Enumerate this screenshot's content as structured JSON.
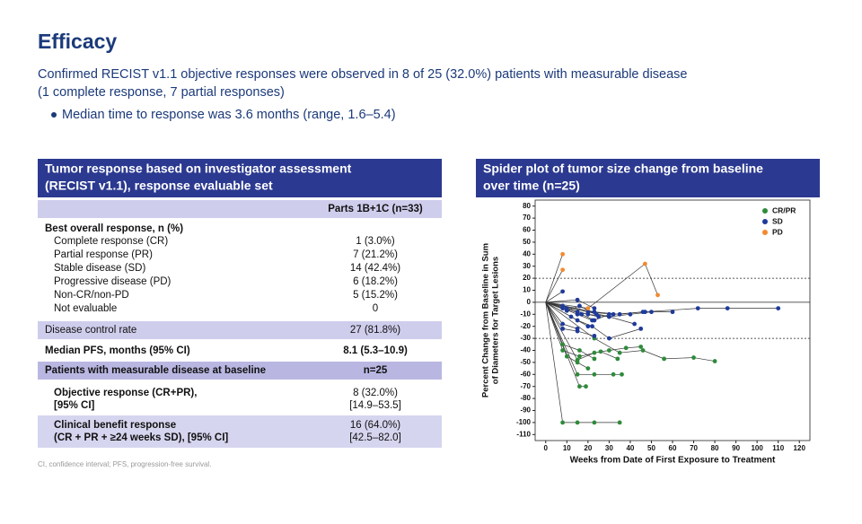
{
  "header": {
    "title": "Efficacy",
    "subtitle_lines": [
      "Confirmed RECIST v1.1 objective responses were observed in 8 of 25 (32.0%) patients with measurable disease",
      "(1 complete response, 7 partial responses)"
    ],
    "bullet": "Median time to response was 3.6 months (range, 1.6–5.4)"
  },
  "table": {
    "title_lines": [
      "Tumor response based on investigator assessment",
      "(RECIST v1.1), response evaluable set"
    ],
    "column": "Parts 1B+1C (n=33)",
    "section": "Best overall response, n (%)",
    "rows": [
      [
        "Complete response (CR)",
        "1 (3.0%)"
      ],
      [
        "Partial response (PR)",
        "7 (21.2%)"
      ],
      [
        "Stable disease (SD)",
        "14 (42.4%)"
      ],
      [
        "Progressive disease (PD)",
        "6 (18.2%)"
      ],
      [
        "Non-CR/non-PD",
        "5 (15.2%)"
      ],
      [
        "Not evaluable",
        "0"
      ]
    ],
    "dcr": [
      "Disease control rate",
      "27 (81.8%)"
    ],
    "pfs": [
      "Median PFS, months (95% CI)",
      "8.1 (5.3–10.9)"
    ],
    "measurable": [
      "Patients with measurable disease at baseline",
      "n=25"
    ],
    "orr": [
      [
        "Objective response (CR+PR),",
        "[95% CI]"
      ],
      [
        "8 (32.0%)",
        "[14.9–53.5]"
      ]
    ],
    "cbr": [
      [
        "Clinical benefit response",
        "(CR + PR + ≥24 weeks SD), [95% CI]"
      ],
      [
        "16 (64.0%)",
        "[42.5–82.0]"
      ]
    ],
    "footnote": "CI, confidence interval; PFS, progression-free survival."
  },
  "chart_data": {
    "type": "spider",
    "title_lines": [
      "Spider plot of tumor size change from baseline",
      "over time (n=25)"
    ],
    "x_label": "Weeks from Date of First Exposure to Treatment",
    "y_label_lines": [
      "Percent Change from Baseline in Sum",
      "of Diameters for Target Lesions"
    ],
    "xlim": [
      -5,
      125
    ],
    "xticks": [
      0,
      10,
      20,
      30,
      40,
      50,
      60,
      70,
      80,
      90,
      100,
      110,
      120
    ],
    "ylim": [
      -115,
      85
    ],
    "yticks": [
      -110,
      -100,
      -90,
      -80,
      -70,
      -60,
      -50,
      -40,
      -30,
      -20,
      -10,
      0,
      10,
      20,
      30,
      40,
      50,
      60,
      70,
      80
    ],
    "reference_lines": [
      20,
      -30
    ],
    "legend": [
      {
        "name": "CR/PR",
        "color": "#2e8b3a"
      },
      {
        "name": "SD",
        "color": "#1f3a9b"
      },
      {
        "name": "PD",
        "color": "#f28a30"
      }
    ],
    "patients": [
      {
        "group": 0,
        "x": [
          0,
          8,
          15,
          23,
          35
        ],
        "y": [
          0,
          -100,
          -100,
          -100,
          -100
        ]
      },
      {
        "group": 0,
        "x": [
          0,
          16,
          19
        ],
        "y": [
          0,
          -70,
          -70
        ]
      },
      {
        "group": 0,
        "x": [
          0,
          15,
          23,
          32,
          36
        ],
        "y": [
          0,
          -60,
          -60,
          -60,
          -60
        ]
      },
      {
        "group": 0,
        "x": [
          0,
          8,
          16,
          26,
          34
        ],
        "y": [
          0,
          -40,
          -45,
          -41,
          -47
        ]
      },
      {
        "group": 0,
        "x": [
          0,
          15,
          23,
          30,
          38,
          45
        ],
        "y": [
          0,
          -48,
          -42,
          -40,
          -38,
          -37
        ]
      },
      {
        "group": 0,
        "x": [
          0,
          23,
          35,
          46,
          56,
          70,
          80
        ],
        "y": [
          0,
          -30,
          -42,
          -40,
          -47,
          -46,
          -49
        ]
      },
      {
        "group": 0,
        "x": [
          0,
          8,
          16,
          23
        ],
        "y": [
          0,
          -35,
          -40,
          -47
        ]
      },
      {
        "group": 0,
        "x": [
          0,
          10,
          15,
          20
        ],
        "y": [
          0,
          -45,
          -50,
          -55
        ]
      },
      {
        "group": 1,
        "x": [
          0,
          8
        ],
        "y": [
          0,
          9
        ]
      },
      {
        "group": 1,
        "x": [
          0,
          8,
          15,
          22
        ],
        "y": [
          0,
          -5,
          -10,
          -15
        ]
      },
      {
        "group": 1,
        "x": [
          0,
          8,
          15
        ],
        "y": [
          0,
          -18,
          -22
        ]
      },
      {
        "group": 1,
        "x": [
          0,
          10,
          20,
          30,
          40,
          50,
          60
        ],
        "y": [
          0,
          -5,
          -10,
          -12,
          -10,
          -8,
          -8
        ]
      },
      {
        "group": 1,
        "x": [
          0,
          15,
          22,
          30,
          45
        ],
        "y": [
          0,
          -15,
          -20,
          -30,
          -22
        ]
      },
      {
        "group": 1,
        "x": [
          0,
          20,
          32,
          47,
          72,
          86,
          110
        ],
        "y": [
          0,
          -8,
          -10,
          -8,
          -5,
          -5,
          -5
        ]
      },
      {
        "group": 1,
        "x": [
          0,
          8,
          15,
          25
        ],
        "y": [
          0,
          -3,
          -8,
          -12
        ]
      },
      {
        "group": 1,
        "x": [
          0,
          12,
          20
        ],
        "y": [
          0,
          -12,
          -20
        ]
      },
      {
        "group": 1,
        "x": [
          0,
          17,
          23,
          30
        ],
        "y": [
          0,
          -10,
          -15,
          -10
        ]
      },
      {
        "group": 1,
        "x": [
          0,
          23,
          35,
          46
        ],
        "y": [
          0,
          -8,
          -10,
          -8
        ]
      },
      {
        "group": 1,
        "x": [
          0,
          8,
          15,
          23
        ],
        "y": [
          0,
          -22,
          -24,
          -28
        ]
      },
      {
        "group": 1,
        "x": [
          0,
          15,
          23
        ],
        "y": [
          0,
          2,
          -5
        ]
      },
      {
        "group": 1,
        "x": [
          0,
          10,
          16,
          24
        ],
        "y": [
          0,
          -7,
          -3,
          -10
        ]
      },
      {
        "group": 1,
        "x": [
          0,
          30,
          42
        ],
        "y": [
          0,
          -12,
          -18
        ]
      },
      {
        "group": 2,
        "x": [
          0,
          8
        ],
        "y": [
          0,
          40
        ]
      },
      {
        "group": 2,
        "x": [
          0,
          8
        ],
        "y": [
          0,
          27
        ]
      },
      {
        "group": 2,
        "x": [
          0,
          20,
          47,
          53
        ],
        "y": [
          0,
          -5,
          32,
          6
        ]
      }
    ]
  }
}
